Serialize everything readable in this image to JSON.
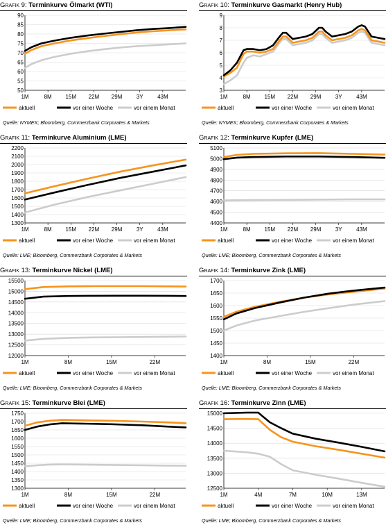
{
  "legend_labels": [
    "aktuell",
    "vor einer Woche",
    "vor einem Monat"
  ],
  "series_colors": [
    "#f7941d",
    "#000000",
    "#cccccc"
  ],
  "panels": [
    {
      "prefix": "Grafik",
      "number": "9:",
      "title": "Terminkurve Ölmarkt (WTI)",
      "source": "Quelle: NYMEX; Bloomberg, Commerzbank Corporates & Markets",
      "chart_data": {
        "type": "line",
        "xlabel": "",
        "ylabel": "",
        "ylim": [
          50,
          90
        ],
        "yticks": [
          50,
          55,
          60,
          65,
          70,
          75,
          80,
          85,
          90
        ],
        "xlim": [
          1,
          50
        ],
        "xtick_labels": [
          "1M",
          "8M",
          "15M",
          "22M",
          "29M",
          "3Y",
          "43M"
        ],
        "xtick_pos": [
          1,
          8,
          15,
          22,
          29,
          36,
          43
        ],
        "series": [
          {
            "name": "aktuell",
            "x": [
              1,
              3,
              6,
              10,
              15,
              20,
              25,
              30,
              35,
              40,
              45,
              50
            ],
            "values": [
              69.5,
              71.5,
              73.5,
              75.0,
              76.6,
              77.8,
              78.9,
              79.9,
              80.8,
              81.5,
              82.0,
              82.5
            ]
          },
          {
            "name": "vor einer Woche",
            "x": [
              1,
              3,
              6,
              10,
              15,
              20,
              25,
              30,
              35,
              40,
              45,
              50
            ],
            "values": [
              71.0,
              73.0,
              75.0,
              76.5,
              78.0,
              79.2,
              80.2,
              81.1,
              82.0,
              82.7,
              83.2,
              83.8
            ]
          },
          {
            "name": "vor einem Monat",
            "x": [
              1,
              3,
              6,
              10,
              15,
              20,
              25,
              30,
              35,
              40,
              45,
              50
            ],
            "values": [
              62.0,
              64.0,
              66.0,
              67.8,
              69.5,
              70.8,
              71.9,
              72.8,
              73.5,
              74.0,
              74.5,
              75.0
            ]
          }
        ]
      }
    },
    {
      "prefix": "Grafik",
      "number": "10:",
      "title": "Terminkurve Gasmarkt (Henry Hub)",
      "source": "Quelle: NYMEX; Bloomberg, Commerzbank Corporates & Markets",
      "chart_data": {
        "type": "line",
        "xlabel": "",
        "ylabel": "",
        "ylim": [
          3,
          9
        ],
        "yticks": [
          3,
          4,
          5,
          6,
          7,
          8,
          9
        ],
        "xlim": [
          1,
          50
        ],
        "xtick_labels": [
          "1M",
          "8M",
          "15M",
          "22M",
          "29M",
          "3Y",
          "43M"
        ],
        "xtick_pos": [
          1,
          8,
          15,
          22,
          29,
          36,
          43
        ],
        "series": [
          {
            "name": "aktuell",
            "x": [
              1,
              3,
              5,
              7,
              8,
              10,
              12,
              14,
              16,
              18,
              19,
              20,
              22,
              24,
              26,
              28,
              30,
              31,
              32,
              34,
              36,
              38,
              40,
              42,
              43,
              44,
              46,
              48,
              50
            ],
            "values": [
              4.1,
              4.4,
              4.8,
              5.9,
              6.1,
              6.1,
              6.0,
              6.1,
              6.3,
              7.0,
              7.3,
              7.3,
              6.8,
              6.9,
              7.0,
              7.2,
              7.7,
              7.7,
              7.4,
              7.0,
              7.1,
              7.2,
              7.4,
              7.8,
              7.9,
              7.8,
              7.0,
              6.9,
              6.8
            ]
          },
          {
            "name": "vor einer Woche",
            "x": [
              1,
              3,
              5,
              7,
              8,
              10,
              12,
              14,
              16,
              18,
              19,
              20,
              22,
              24,
              26,
              28,
              30,
              31,
              32,
              34,
              36,
              38,
              40,
              42,
              43,
              44,
              46,
              48,
              50
            ],
            "values": [
              4.2,
              4.6,
              5.2,
              6.2,
              6.3,
              6.3,
              6.2,
              6.3,
              6.6,
              7.3,
              7.6,
              7.6,
              7.1,
              7.2,
              7.3,
              7.5,
              8.0,
              8.0,
              7.7,
              7.3,
              7.4,
              7.5,
              7.7,
              8.1,
              8.2,
              8.1,
              7.3,
              7.2,
              7.1
            ]
          },
          {
            "name": "vor einem Monat",
            "x": [
              1,
              3,
              5,
              7,
              8,
              10,
              12,
              14,
              16,
              18,
              19,
              20,
              22,
              24,
              26,
              28,
              30,
              31,
              32,
              34,
              36,
              38,
              40,
              42,
              43,
              44,
              46,
              48,
              50
            ],
            "values": [
              3.5,
              3.8,
              4.2,
              5.2,
              5.6,
              5.8,
              5.7,
              5.9,
              6.1,
              6.8,
              7.1,
              7.1,
              6.6,
              6.7,
              6.8,
              7.0,
              7.5,
              7.5,
              7.2,
              6.8,
              6.9,
              7.0,
              7.2,
              7.6,
              7.7,
              7.6,
              6.8,
              6.7,
              6.6
            ]
          }
        ]
      }
    },
    {
      "prefix": "Grafik",
      "number": "11:",
      "title": "Terminkurve Aluminium (LME)",
      "source": "Quelle: LME; Bloomberg, Commerzbank Corporates & Markets",
      "chart_data": {
        "type": "line",
        "xlabel": "",
        "ylabel": "",
        "ylim": [
          1300,
          2200
        ],
        "yticks": [
          1300,
          1400,
          1500,
          1600,
          1700,
          1800,
          1900,
          2000,
          2100,
          2200
        ],
        "xlim": [
          1,
          50
        ],
        "xtick_labels": [
          "1M",
          "8M",
          "15M",
          "22M",
          "29M",
          "3Y",
          "43M"
        ],
        "xtick_pos": [
          1,
          8,
          15,
          22,
          29,
          36,
          43
        ],
        "series": [
          {
            "name": "aktuell",
            "x": [
              1,
              10,
              20,
              30,
              40,
              50
            ],
            "values": [
              1655,
              1740,
              1830,
              1915,
              1990,
              2060
            ]
          },
          {
            "name": "vor einer Woche",
            "x": [
              1,
              10,
              20,
              30,
              40,
              50
            ],
            "values": [
              1580,
              1665,
              1755,
              1840,
              1915,
              1990
            ]
          },
          {
            "name": "vor einem Monat",
            "x": [
              1,
              10,
              20,
              30,
              40,
              50
            ],
            "values": [
              1425,
              1520,
              1610,
              1690,
              1770,
              1850
            ]
          }
        ]
      }
    },
    {
      "prefix": "Grafik",
      "number": "12:",
      "title": "Terminkurve Kupfer (LME)",
      "source": "Quelle: LME; Bloomberg, Commerzbank Corporates & Markets",
      "chart_data": {
        "type": "line",
        "xlabel": "",
        "ylabel": "",
        "ylim": [
          4400,
          5100
        ],
        "yticks": [
          4400,
          4500,
          4600,
          4700,
          4800,
          4900,
          5000,
          5100
        ],
        "xlim": [
          1,
          50
        ],
        "xtick_labels": [
          "1M",
          "8M",
          "15M",
          "22M",
          "29M",
          "3Y",
          "43M"
        ],
        "xtick_pos": [
          1,
          8,
          15,
          22,
          29,
          36,
          43
        ],
        "series": [
          {
            "name": "aktuell",
            "x": [
              1,
              5,
              10,
              20,
              30,
              40,
              50
            ],
            "values": [
              5015,
              5035,
              5045,
              5050,
              5052,
              5045,
              5038
            ]
          },
          {
            "name": "vor einer Woche",
            "x": [
              1,
              5,
              10,
              20,
              30,
              40,
              50
            ],
            "values": [
              4995,
              5010,
              5015,
              5020,
              5020,
              5015,
              5008
            ]
          },
          {
            "name": "vor einem Monat",
            "x": [
              1,
              5,
              10,
              20,
              30,
              40,
              50
            ],
            "values": [
              4610,
              4612,
              4613,
              4615,
              4618,
              4620,
              4620
            ]
          }
        ]
      }
    },
    {
      "prefix": "Grafik",
      "number": "13:",
      "title": "Terminkurve Nickel (LME)",
      "source": "Quelle: LME; Bloomberg, Commerzbank Corporates & Markets",
      "chart_data": {
        "type": "line",
        "xlabel": "",
        "ylabel": "",
        "ylim": [
          12000,
          15500
        ],
        "yticks": [
          12000,
          12500,
          13000,
          13500,
          14000,
          14500,
          15000,
          15500
        ],
        "xlim": [
          1,
          27
        ],
        "xtick_labels": [
          "1M",
          "8M",
          "15M",
          "22M"
        ],
        "xtick_pos": [
          1,
          8,
          15,
          22
        ],
        "series": [
          {
            "name": "aktuell",
            "x": [
              1,
              4,
              8,
              12,
              16,
              20,
              24,
              27
            ],
            "values": [
              15100,
              15200,
              15230,
              15240,
              15240,
              15240,
              15230,
              15220
            ]
          },
          {
            "name": "vor einer Woche",
            "x": [
              1,
              4,
              8,
              12,
              16,
              20,
              24,
              27
            ],
            "values": [
              14650,
              14750,
              14780,
              14790,
              14795,
              14795,
              14790,
              14780
            ]
          },
          {
            "name": "vor einem Monat",
            "x": [
              1,
              4,
              8,
              12,
              16,
              20,
              24,
              27
            ],
            "values": [
              12700,
              12780,
              12830,
              12850,
              12860,
              12870,
              12880,
              12890
            ]
          }
        ]
      }
    },
    {
      "prefix": "Grafik",
      "number": "14:",
      "title": "Terminkurve Zink (LME)",
      "source": "Quelle: LME; Bloomberg, Commerzbank Corporates & Markets",
      "chart_data": {
        "type": "line",
        "xlabel": "",
        "ylabel": "",
        "ylim": [
          1400,
          1700
        ],
        "yticks": [
          1400,
          1450,
          1500,
          1550,
          1600,
          1650,
          1700
        ],
        "xlim": [
          1,
          27
        ],
        "xtick_labels": [
          "1M",
          "8M",
          "15M",
          "22M"
        ],
        "xtick_pos": [
          1,
          8,
          15,
          22
        ],
        "series": [
          {
            "name": "aktuell",
            "x": [
              1,
              3,
              6,
              10,
              14,
              18,
              22,
              27
            ],
            "values": [
              1555,
              1575,
              1595,
              1615,
              1632,
              1645,
              1655,
              1668
            ]
          },
          {
            "name": "vor einer Woche",
            "x": [
              1,
              3,
              6,
              10,
              14,
              18,
              22,
              27
            ],
            "values": [
              1545,
              1568,
              1590,
              1612,
              1632,
              1648,
              1660,
              1672
            ]
          },
          {
            "name": "vor einem Monat",
            "x": [
              1,
              3,
              6,
              10,
              14,
              18,
              22,
              27
            ],
            "values": [
              1500,
              1520,
              1540,
              1558,
              1575,
              1590,
              1604,
              1618
            ]
          }
        ]
      }
    },
    {
      "prefix": "Grafik",
      "number": "15:",
      "title": "Terminkurve Blei (LME)",
      "source": "Quelle: LME; Bloomberg, Commerzbank Corporates & Markets",
      "chart_data": {
        "type": "line",
        "xlabel": "",
        "ylabel": "",
        "ylim": [
          1300,
          1750
        ],
        "yticks": [
          1300,
          1350,
          1400,
          1450,
          1500,
          1550,
          1600,
          1650,
          1700,
          1750
        ],
        "xlim": [
          1,
          27
        ],
        "xtick_labels": [
          "1M",
          "8M",
          "15M",
          "22M"
        ],
        "xtick_pos": [
          1,
          8,
          15,
          22
        ],
        "series": [
          {
            "name": "aktuell",
            "x": [
              1,
              3,
              5,
              7,
              10,
              15,
              20,
              24,
              27
            ],
            "values": [
              1675,
              1695,
              1705,
              1710,
              1708,
              1705,
              1700,
              1695,
              1690
            ]
          },
          {
            "name": "vor einer Woche",
            "x": [
              1,
              3,
              5,
              7,
              10,
              15,
              20,
              24,
              27
            ],
            "values": [
              1650,
              1670,
              1683,
              1690,
              1688,
              1684,
              1678,
              1670,
              1665
            ]
          },
          {
            "name": "vor einem Monat",
            "x": [
              1,
              3,
              5,
              7,
              10,
              15,
              20,
              24,
              27
            ],
            "values": [
              1432,
              1438,
              1442,
              1443,
              1442,
              1440,
              1438,
              1436,
              1435
            ]
          }
        ]
      }
    },
    {
      "prefix": "Grafik",
      "number": "16:",
      "title": "Terminkurve Zinn (LME)",
      "source": "Quelle: LME; Bloomberg, Commerzbank Corporates & Markets",
      "chart_data": {
        "type": "line",
        "xlabel": "",
        "ylabel": "",
        "ylim": [
          12500,
          15000
        ],
        "yticks": [
          12500,
          13000,
          13500,
          14000,
          14500,
          15000
        ],
        "xlim": [
          1,
          15
        ],
        "xtick_labels": [
          "1M",
          "4M",
          "7M",
          "10M",
          "13M"
        ],
        "xtick_pos": [
          1,
          4,
          7,
          10,
          13
        ],
        "series": [
          {
            "name": "aktuell",
            "x": [
              1,
              3,
              4,
              5,
              6,
              7,
              9,
              11,
              13,
              15
            ],
            "values": [
              14800,
              14810,
              14800,
              14450,
              14200,
              14050,
              13900,
              13780,
              13650,
              13520
            ]
          },
          {
            "name": "vor einer Woche",
            "x": [
              1,
              3,
              4,
              5,
              6,
              7,
              9,
              11,
              13,
              15
            ],
            "values": [
              15000,
              15020,
              15020,
              14700,
              14500,
              14320,
              14150,
              14020,
              13880,
              13730
            ]
          },
          {
            "name": "vor einem Monat",
            "x": [
              1,
              3,
              4,
              5,
              6,
              7,
              9,
              11,
              13,
              15
            ],
            "values": [
              13750,
              13700,
              13650,
              13550,
              13300,
              13100,
              12950,
              12820,
              12680,
              12550
            ]
          }
        ]
      }
    }
  ]
}
